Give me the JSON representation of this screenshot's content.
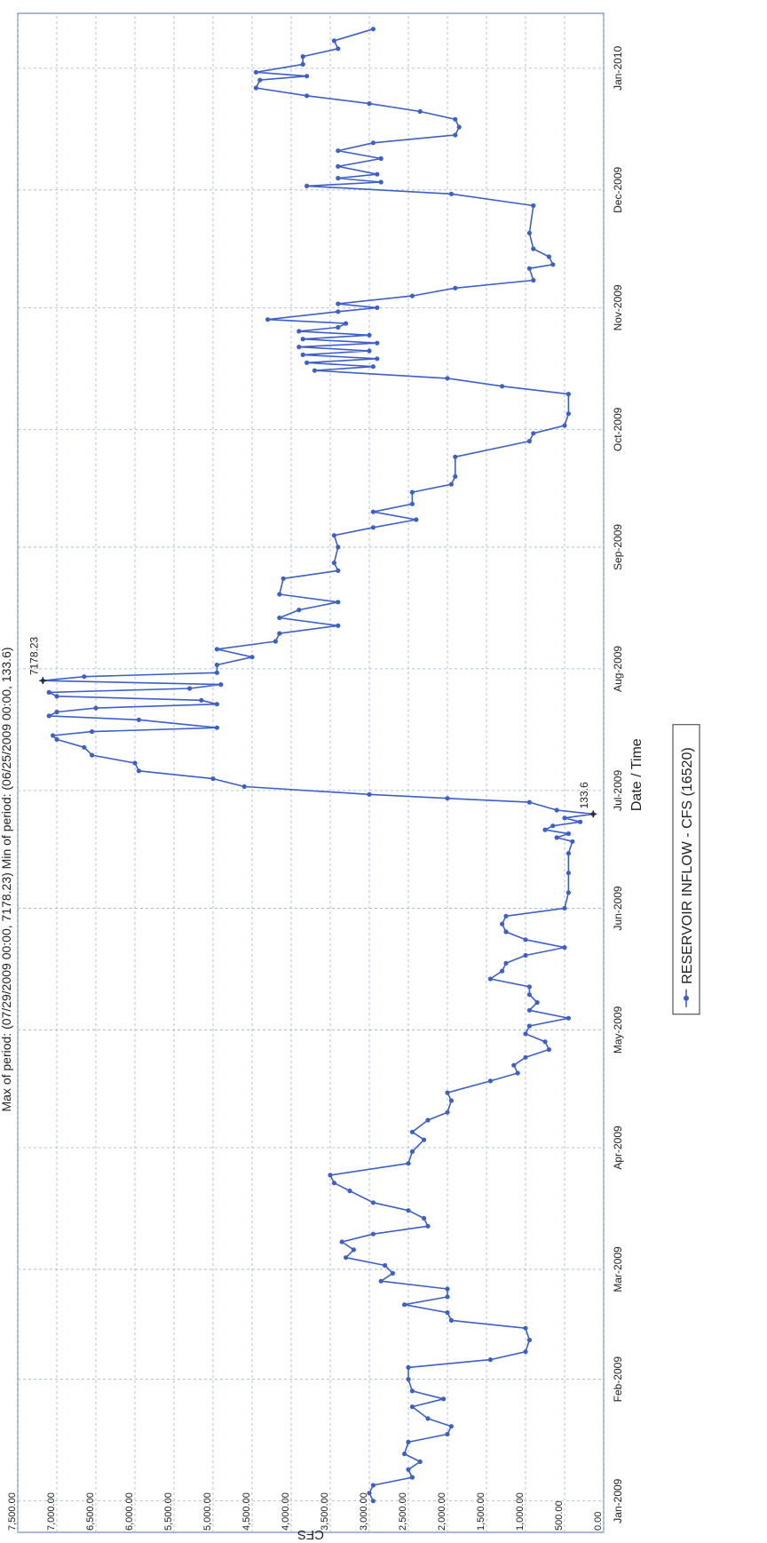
{
  "header_text": "Max of period: (07/29/2009 00:00, 7178.23) Min of period: (06/25/2009 00:00, 133.6)",
  "chart_data": {
    "type": "line",
    "xlabel": "Date / Time",
    "ylabel": "CFS",
    "ylim": [
      0,
      7500
    ],
    "y_ticks": [
      "0.00",
      "500.00",
      "1,000.00",
      "1,500.00",
      "2,000.00",
      "2,500.00",
      "3,000.00",
      "3,500.00",
      "4,000.00",
      "4,500.00",
      "5,000.00",
      "5,500.00",
      "6,000.00",
      "6,500.00",
      "7,000.00",
      "7,500.00"
    ],
    "x_ticks": [
      "Jan-2009",
      "Feb-2009",
      "Mar-2009",
      "Apr-2009",
      "May-2009",
      "Jun-2009",
      "Jul-2009",
      "Aug-2009",
      "Sep-2009",
      "Oct-2009",
      "Nov-2009",
      "Dec-2009",
      "Jan-2010"
    ],
    "grid": true,
    "legend_position": "bottom",
    "series": [
      {
        "name": "RESERVOIR INFLOW - CFS (16520)",
        "color": "#3d5fc8",
        "points": [
          [
            "2009-01-01",
            2950
          ],
          [
            "2009-01-03",
            3000
          ],
          [
            "2009-01-05",
            2950
          ],
          [
            "2009-01-07",
            2450
          ],
          [
            "2009-01-09",
            2500
          ],
          [
            "2009-01-11",
            2350
          ],
          [
            "2009-01-13",
            2550
          ],
          [
            "2009-01-16",
            2500
          ],
          [
            "2009-01-18",
            2000
          ],
          [
            "2009-01-20",
            1950
          ],
          [
            "2009-01-22",
            2250
          ],
          [
            "2009-01-25",
            2450
          ],
          [
            "2009-01-27",
            2050
          ],
          [
            "2009-01-29",
            2450
          ],
          [
            "2009-02-01",
            2500
          ],
          [
            "2009-02-04",
            2500
          ],
          [
            "2009-02-06",
            1450
          ],
          [
            "2009-02-08",
            1000
          ],
          [
            "2009-02-11",
            950
          ],
          [
            "2009-02-14",
            1000
          ],
          [
            "2009-02-16",
            1950
          ],
          [
            "2009-02-18",
            2000
          ],
          [
            "2009-02-20",
            2550
          ],
          [
            "2009-02-22",
            2000
          ],
          [
            "2009-02-24",
            2000
          ],
          [
            "2009-02-26",
            2850
          ],
          [
            "2009-02-28",
            2700
          ],
          [
            "2009-03-02",
            2800
          ],
          [
            "2009-03-04",
            3300
          ],
          [
            "2009-03-06",
            3200
          ],
          [
            "2009-03-08",
            3350
          ],
          [
            "2009-03-10",
            2950
          ],
          [
            "2009-03-12",
            2250
          ],
          [
            "2009-03-14",
            2300
          ],
          [
            "2009-03-16",
            2500
          ],
          [
            "2009-03-18",
            2950
          ],
          [
            "2009-03-21",
            3250
          ],
          [
            "2009-03-23",
            3450
          ],
          [
            "2009-03-25",
            3500
          ],
          [
            "2009-03-28",
            2500
          ],
          [
            "2009-03-31",
            2450
          ],
          [
            "2009-04-03",
            2300
          ],
          [
            "2009-04-05",
            2450
          ],
          [
            "2009-04-08",
            2250
          ],
          [
            "2009-04-10",
            2000
          ],
          [
            "2009-04-13",
            1950
          ],
          [
            "2009-04-15",
            2000
          ],
          [
            "2009-04-18",
            1450
          ],
          [
            "2009-04-20",
            1100
          ],
          [
            "2009-04-22",
            1150
          ],
          [
            "2009-04-24",
            1000
          ],
          [
            "2009-04-26",
            700
          ],
          [
            "2009-04-28",
            750
          ],
          [
            "2009-04-30",
            1000
          ],
          [
            "2009-05-02",
            950
          ],
          [
            "2009-05-04",
            450
          ],
          [
            "2009-05-06",
            950
          ],
          [
            "2009-05-08",
            850
          ],
          [
            "2009-05-10",
            950
          ],
          [
            "2009-05-12",
            950
          ],
          [
            "2009-05-14",
            1450
          ],
          [
            "2009-05-16",
            1300
          ],
          [
            "2009-05-18",
            1250
          ],
          [
            "2009-05-20",
            1000
          ],
          [
            "2009-05-22",
            500
          ],
          [
            "2009-05-24",
            1000
          ],
          [
            "2009-05-26",
            1250
          ],
          [
            "2009-05-28",
            1300
          ],
          [
            "2009-05-30",
            1250
          ],
          [
            "2009-06-01",
            500
          ],
          [
            "2009-06-05",
            450
          ],
          [
            "2009-06-10",
            450
          ],
          [
            "2009-06-15",
            450
          ],
          [
            "2009-06-18",
            400
          ],
          [
            "2009-06-19",
            600
          ],
          [
            "2009-06-20",
            450
          ],
          [
            "2009-06-21",
            750
          ],
          [
            "2009-06-22",
            650
          ],
          [
            "2009-06-23",
            300
          ],
          [
            "2009-06-24",
            500
          ],
          [
            "2009-06-25",
            133.6
          ],
          [
            "2009-06-26",
            600
          ],
          [
            "2009-06-28",
            950
          ],
          [
            "2009-06-29",
            2000
          ],
          [
            "2009-06-30",
            3000
          ],
          [
            "2009-07-02",
            4600
          ],
          [
            "2009-07-04",
            5000
          ],
          [
            "2009-07-06",
            5950
          ],
          [
            "2009-07-08",
            6000
          ],
          [
            "2009-07-10",
            6550
          ],
          [
            "2009-07-12",
            6650
          ],
          [
            "2009-07-14",
            7000
          ],
          [
            "2009-07-15",
            7050
          ],
          [
            "2009-07-16",
            6550
          ],
          [
            "2009-07-17",
            4950
          ],
          [
            "2009-07-19",
            5950
          ],
          [
            "2009-07-20",
            7100
          ],
          [
            "2009-07-21",
            7000
          ],
          [
            "2009-07-22",
            6500
          ],
          [
            "2009-07-23",
            4950
          ],
          [
            "2009-07-24",
            5150
          ],
          [
            "2009-07-25",
            7000
          ],
          [
            "2009-07-26",
            7100
          ],
          [
            "2009-07-27",
            5300
          ],
          [
            "2009-07-28",
            4900
          ],
          [
            "2009-07-29",
            7178.23
          ],
          [
            "2009-07-30",
            6650
          ],
          [
            "2009-07-31",
            4950
          ],
          [
            "2009-08-02",
            4950
          ],
          [
            "2009-08-04",
            4500
          ],
          [
            "2009-08-06",
            4950
          ],
          [
            "2009-08-08",
            4200
          ],
          [
            "2009-08-10",
            4150
          ],
          [
            "2009-08-12",
            3400
          ],
          [
            "2009-08-14",
            4150
          ],
          [
            "2009-08-16",
            3900
          ],
          [
            "2009-08-18",
            3400
          ],
          [
            "2009-08-20",
            4150
          ],
          [
            "2009-08-24",
            4100
          ],
          [
            "2009-08-26",
            3400
          ],
          [
            "2009-08-28",
            3450
          ],
          [
            "2009-09-01",
            3400
          ],
          [
            "2009-09-04",
            3450
          ],
          [
            "2009-09-06",
            2950
          ],
          [
            "2009-09-08",
            2400
          ],
          [
            "2009-09-10",
            2950
          ],
          [
            "2009-09-12",
            2450
          ],
          [
            "2009-09-15",
            2450
          ],
          [
            "2009-09-17",
            1950
          ],
          [
            "2009-09-19",
            1900
          ],
          [
            "2009-09-24",
            1900
          ],
          [
            "2009-09-28",
            950
          ],
          [
            "2009-09-30",
            900
          ],
          [
            "2009-10-02",
            500
          ],
          [
            "2009-10-05",
            450
          ],
          [
            "2009-10-10",
            450
          ],
          [
            "2009-10-12",
            1300
          ],
          [
            "2009-10-14",
            2000
          ],
          [
            "2009-10-16",
            3700
          ],
          [
            "2009-10-17",
            2950
          ],
          [
            "2009-10-18",
            3800
          ],
          [
            "2009-10-19",
            2900
          ],
          [
            "2009-10-20",
            3850
          ],
          [
            "2009-10-21",
            3000
          ],
          [
            "2009-10-22",
            3900
          ],
          [
            "2009-10-23",
            2900
          ],
          [
            "2009-10-24",
            3850
          ],
          [
            "2009-10-25",
            3000
          ],
          [
            "2009-10-26",
            3900
          ],
          [
            "2009-10-27",
            3400
          ],
          [
            "2009-10-28",
            3300
          ],
          [
            "2009-10-29",
            4300
          ],
          [
            "2009-10-31",
            3400
          ],
          [
            "2009-11-01",
            2900
          ],
          [
            "2009-11-02",
            3400
          ],
          [
            "2009-11-04",
            2450
          ],
          [
            "2009-11-06",
            1900
          ],
          [
            "2009-11-08",
            900
          ],
          [
            "2009-11-11",
            950
          ],
          [
            "2009-11-12",
            650
          ],
          [
            "2009-11-14",
            700
          ],
          [
            "2009-11-16",
            900
          ],
          [
            "2009-11-20",
            950
          ],
          [
            "2009-11-27",
            900
          ],
          [
            "2009-11-30",
            1950
          ],
          [
            "2009-12-02",
            3800
          ],
          [
            "2009-12-03",
            2850
          ],
          [
            "2009-12-04",
            3400
          ],
          [
            "2009-12-05",
            2900
          ],
          [
            "2009-12-07",
            3400
          ],
          [
            "2009-12-09",
            2850
          ],
          [
            "2009-12-11",
            3400
          ],
          [
            "2009-12-13",
            2950
          ],
          [
            "2009-12-15",
            1900
          ],
          [
            "2009-12-17",
            1850
          ],
          [
            "2009-12-19",
            1900
          ],
          [
            "2009-12-21",
            2350
          ],
          [
            "2009-12-23",
            3000
          ],
          [
            "2009-12-25",
            3800
          ],
          [
            "2009-12-27",
            4450
          ],
          [
            "2009-12-29",
            4400
          ],
          [
            "2009-12-30",
            3800
          ],
          [
            "2009-12-31",
            4450
          ],
          [
            "2010-01-02",
            3850
          ],
          [
            "2010-01-04",
            3850
          ],
          [
            "2010-01-06",
            3400
          ],
          [
            "2010-01-08",
            3450
          ],
          [
            "2010-01-11",
            2950
          ]
        ]
      }
    ],
    "annotations": [
      {
        "date": "2009-07-29",
        "value": 7178.23,
        "label": "7178.23"
      },
      {
        "date": "2009-06-25",
        "value": 133.6,
        "label": "133.6"
      }
    ]
  }
}
